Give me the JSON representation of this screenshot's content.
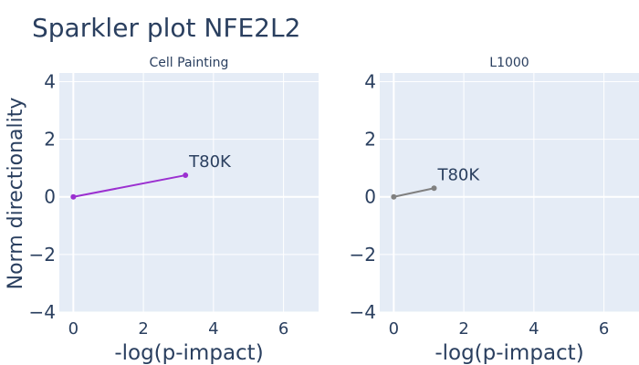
{
  "title": "Sparkler plot NFE2L2",
  "colors": {
    "plot_bg": "#E5ECF6",
    "grid": "#ffffff",
    "text": "#2a3f5f",
    "series_cell_painting": "#9B30D0",
    "series_l1000": "#808080"
  },
  "chart_data": [
    {
      "type": "scatter",
      "subtitle": "Cell Painting",
      "xlabel": "-log(p-impact)",
      "ylabel": "Norm directionality",
      "xlim": [
        -0.4,
        7
      ],
      "ylim": [
        -4,
        4.3
      ],
      "xticks": [
        0,
        2,
        4,
        6
      ],
      "yticks": [
        -4,
        -2,
        0,
        2,
        4
      ],
      "ytick_labels": [
        "−4",
        "−2",
        "0",
        "2",
        "4"
      ],
      "grid": true,
      "series": [
        {
          "color": "#9B30D0",
          "x": [
            0,
            3.2
          ],
          "y": [
            0,
            0.75
          ],
          "point_labels": [
            "",
            "T80K"
          ]
        }
      ]
    },
    {
      "type": "scatter",
      "subtitle": "L1000",
      "xlabel": "-log(p-impact)",
      "ylabel": "",
      "xlim": [
        -0.4,
        7
      ],
      "ylim": [
        -4,
        4.3
      ],
      "xticks": [
        0,
        2,
        4,
        6
      ],
      "yticks": [
        -4,
        -2,
        0,
        2,
        4
      ],
      "ytick_labels": [
        "−4",
        "−2",
        "0",
        "2",
        "4"
      ],
      "grid": true,
      "series": [
        {
          "color": "#808080",
          "x": [
            0,
            1.15
          ],
          "y": [
            0,
            0.3
          ],
          "point_labels": [
            "",
            "T80K"
          ]
        }
      ]
    }
  ]
}
